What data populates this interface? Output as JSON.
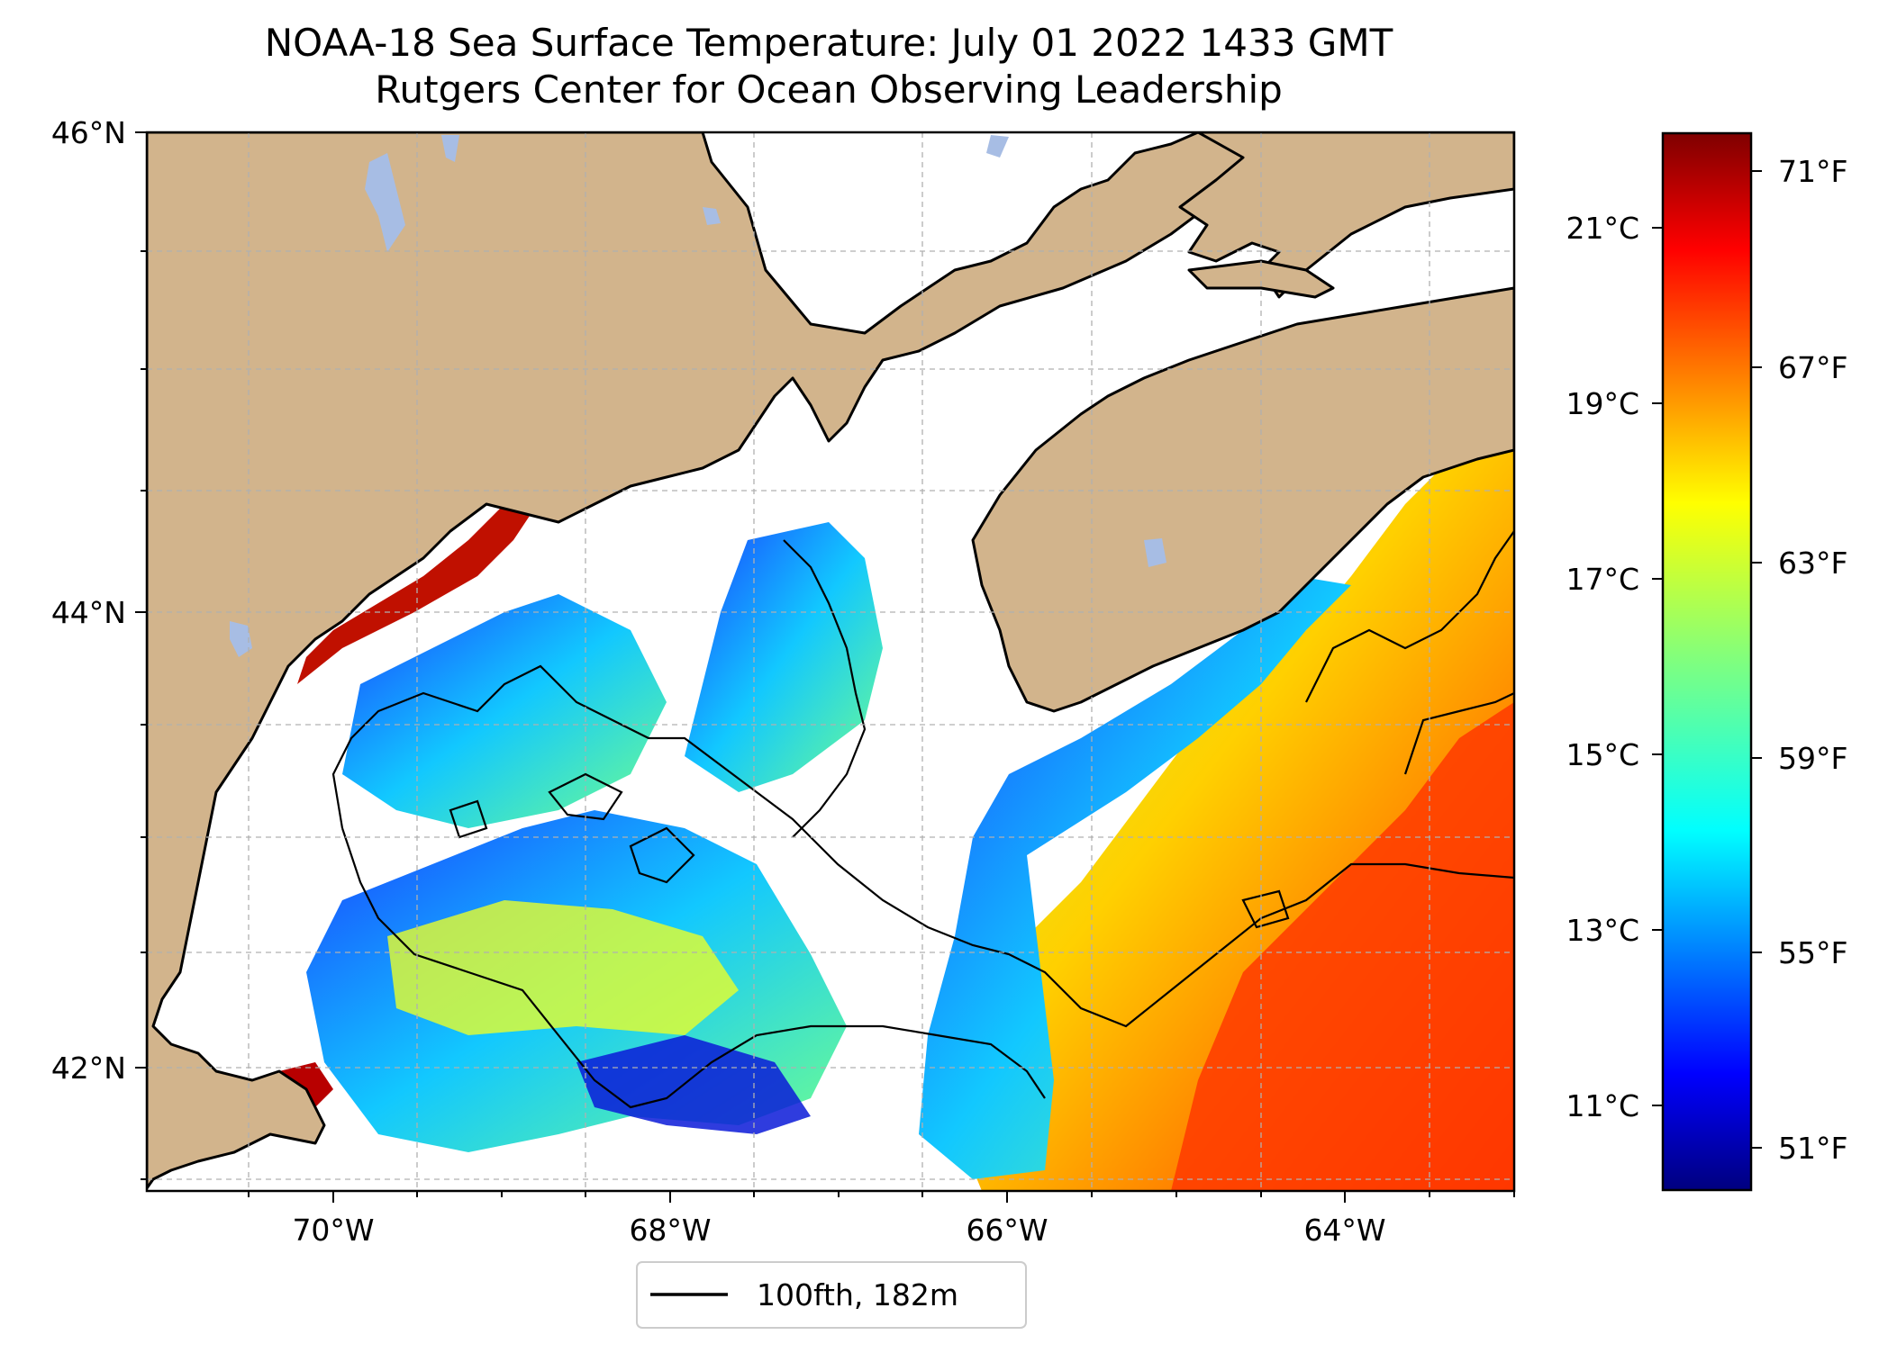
{
  "title": "NOAA-18 Sea Surface Temperature: July 01 2022 1433 GMT",
  "subtitle": "Rutgers Center for Ocean Observing Leadership",
  "map": {
    "lat_ticks": [
      "46°N",
      "44°N",
      "42°N"
    ],
    "lon_ticks": [
      "70°W",
      "68°W",
      "66°W",
      "64°W"
    ],
    "lon_range": [
      -71.2,
      -63.1
    ],
    "lat_range": [
      41.5,
      46.0
    ],
    "land_color": "#d2b48c",
    "water_bodies_color": "#a7bde4",
    "no_data_color": "#ffffff",
    "contour_color": "#000000"
  },
  "legend": {
    "label": "100fth, 182m"
  },
  "colorbar": {
    "colormap": "jet",
    "celsius_ticks": [
      "21°C",
      "19°C",
      "17°C",
      "15°C",
      "13°C",
      "11°C"
    ],
    "fahrenheit_ticks": [
      "71°F",
      "67°F",
      "63°F",
      "59°F",
      "55°F",
      "51°F"
    ],
    "range_celsius": [
      10.1,
      22.1
    ],
    "stops": [
      "#00007f",
      "#0000ff",
      "#007fff",
      "#00ffff",
      "#7fff7f",
      "#ffff00",
      "#ff7f00",
      "#ff0000",
      "#7f0000"
    ]
  }
}
